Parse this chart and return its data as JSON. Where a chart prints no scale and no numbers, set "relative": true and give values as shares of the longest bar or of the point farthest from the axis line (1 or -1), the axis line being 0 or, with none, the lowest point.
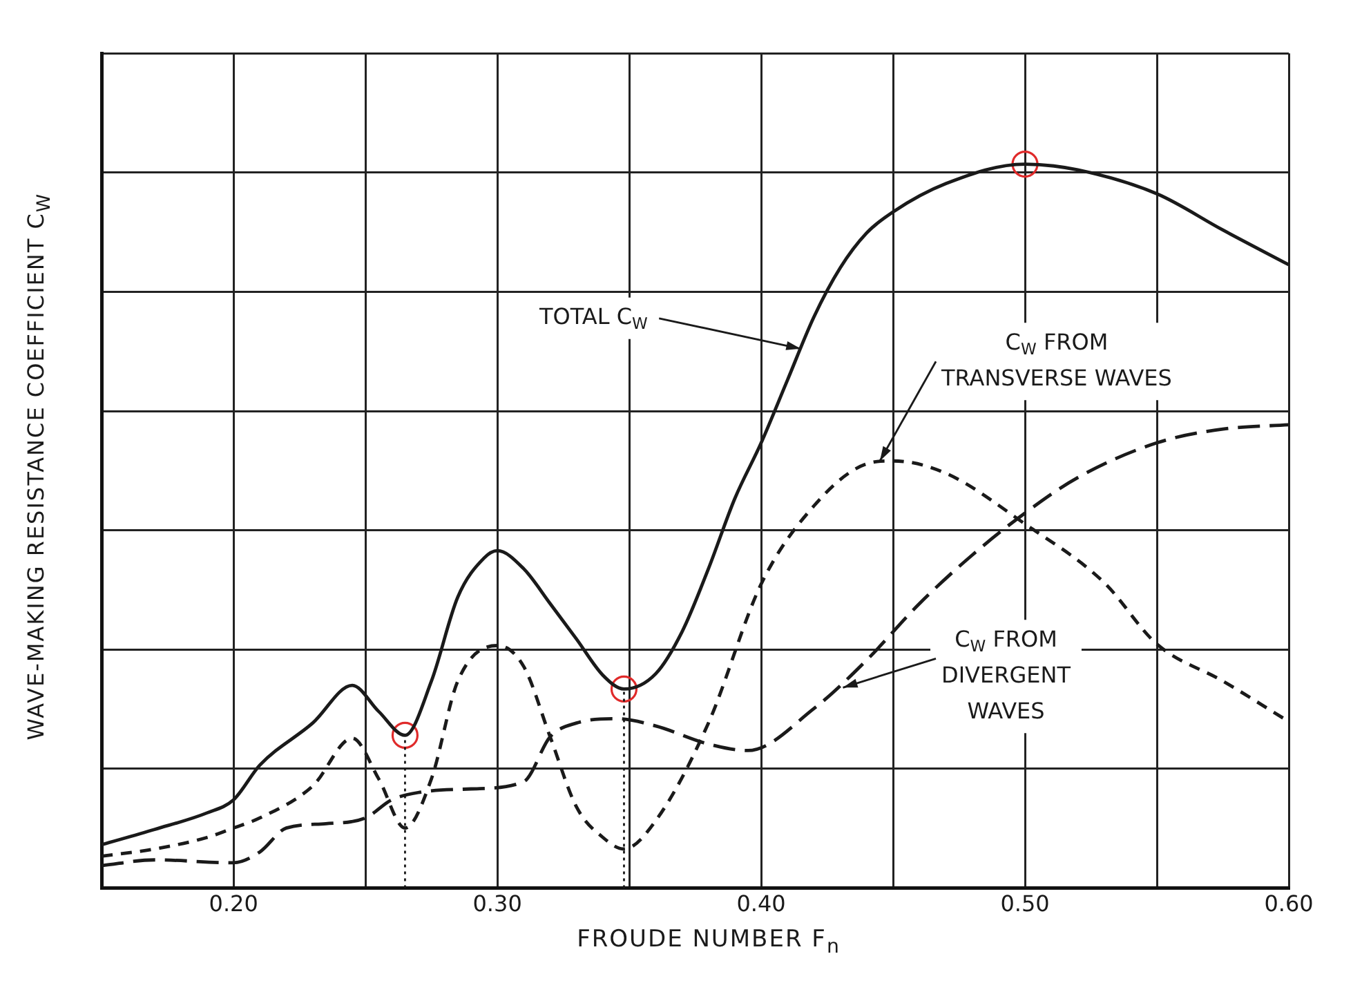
{
  "chart_data": {
    "type": "line",
    "xlabel": "FROUDE NUMBER F$_{n}$",
    "ylabel": "WAVE-MAKING RESISTANCE COEFFICIENT C$_{W}$",
    "relative": true,
    "xlim": [
      0.15,
      0.6
    ],
    "xticks": [
      {
        "value": 0.15,
        "label": null
      },
      {
        "value": 0.2,
        "label": "0.20"
      },
      {
        "value": 0.25,
        "label": null
      },
      {
        "value": 0.3,
        "label": "0.30"
      },
      {
        "value": 0.35,
        "label": null
      },
      {
        "value": 0.4,
        "label": "0.40"
      },
      {
        "value": 0.45,
        "label": null
      },
      {
        "value": 0.5,
        "label": "0.50"
      },
      {
        "value": 0.55,
        "label": null
      },
      {
        "value": 0.6,
        "label": "0.60"
      }
    ],
    "grid": true,
    "legend": false,
    "tick_labels": "x",
    "marker": "none",
    "series": [
      {
        "color": "#1a1a1a",
        "line_style": "solid",
        "x": [
          0.15,
          0.17,
          0.19,
          0.2,
          0.21,
          0.23,
          0.245,
          0.255,
          0.265,
          0.275,
          0.285,
          0.295,
          0.3,
          0.31,
          0.32,
          0.33,
          0.34,
          0.348,
          0.36,
          0.37,
          0.38,
          0.39,
          0.4,
          0.41,
          0.42,
          0.43,
          0.44,
          0.45,
          0.47,
          0.5,
          0.52,
          0.55,
          0.575,
          0.6
        ],
        "values": [
          0.06,
          0.081,
          0.104,
          0.122,
          0.17,
          0.228,
          0.28,
          0.244,
          0.211,
          0.286,
          0.402,
          0.456,
          0.466,
          0.441,
          0.393,
          0.344,
          0.294,
          0.275,
          0.296,
          0.354,
          0.441,
          0.538,
          0.615,
          0.702,
          0.789,
          0.857,
          0.905,
          0.934,
          0.973,
          1.0,
          0.992,
          0.959,
          0.909,
          0.861
        ]
      },
      {
        "color": "#1a1a1a",
        "line_style": "dashed",
        "x": [
          0.15,
          0.17,
          0.19,
          0.2,
          0.21,
          0.23,
          0.245,
          0.255,
          0.265,
          0.275,
          0.285,
          0.3,
          0.31,
          0.32,
          0.33,
          0.34,
          0.348,
          0.36,
          0.38,
          0.4,
          0.42,
          0.44,
          0.45,
          0.47,
          0.5,
          0.53,
          0.55,
          0.575,
          0.6
        ],
        "values": [
          0.044,
          0.054,
          0.07,
          0.083,
          0.097,
          0.141,
          0.207,
          0.151,
          0.083,
          0.151,
          0.286,
          0.335,
          0.306,
          0.209,
          0.112,
          0.07,
          0.054,
          0.093,
          0.228,
          0.42,
          0.528,
          0.586,
          0.59,
          0.573,
          0.503,
          0.422,
          0.337,
          0.286,
          0.23
        ]
      },
      {
        "color": "#1a1a1a",
        "line_style": "dashed",
        "x": [
          0.15,
          0.17,
          0.2,
          0.21,
          0.22,
          0.235,
          0.25,
          0.26,
          0.27,
          0.29,
          0.31,
          0.32,
          0.33,
          0.345,
          0.36,
          0.38,
          0.395,
          0.42,
          0.44,
          0.46,
          0.48,
          0.5,
          0.52,
          0.55,
          0.575,
          0.6
        ],
        "values": [
          0.031,
          0.039,
          0.035,
          0.05,
          0.083,
          0.089,
          0.097,
          0.122,
          0.132,
          0.137,
          0.147,
          0.209,
          0.228,
          0.234,
          0.224,
          0.199,
          0.19,
          0.248,
          0.315,
          0.393,
          0.46,
          0.518,
          0.567,
          0.615,
          0.634,
          0.64
        ]
      },
      {
        "type": "scatter",
        "marker": "circle",
        "color": "#e02a2a",
        "x": [
          0.265,
          0.348,
          0.5
        ],
        "values": [
          0.211,
          0.275,
          1.0
        ]
      }
    ],
    "ref_lines": [
      {
        "axis": "x",
        "value": 0.265,
        "color": "#1a1a1a",
        "line_style": "dotted"
      },
      {
        "axis": "x",
        "value": 0.348,
        "color": "#1a1a1a",
        "line_style": "dotted"
      }
    ],
    "annotations": [
      {
        "text": "TOTAL C$_{W}$",
        "x": 0.415,
        "y": 0.745
      },
      {
        "text": "C$_{W}$ FROM\nTRANSVERSE WAVES",
        "x": 0.445,
        "y": 0.59
      },
      {
        "text": "C$_{W}$ FROM\nDIVERGENT\nWAVES",
        "x": 0.431,
        "y": 0.277
      }
    ]
  }
}
